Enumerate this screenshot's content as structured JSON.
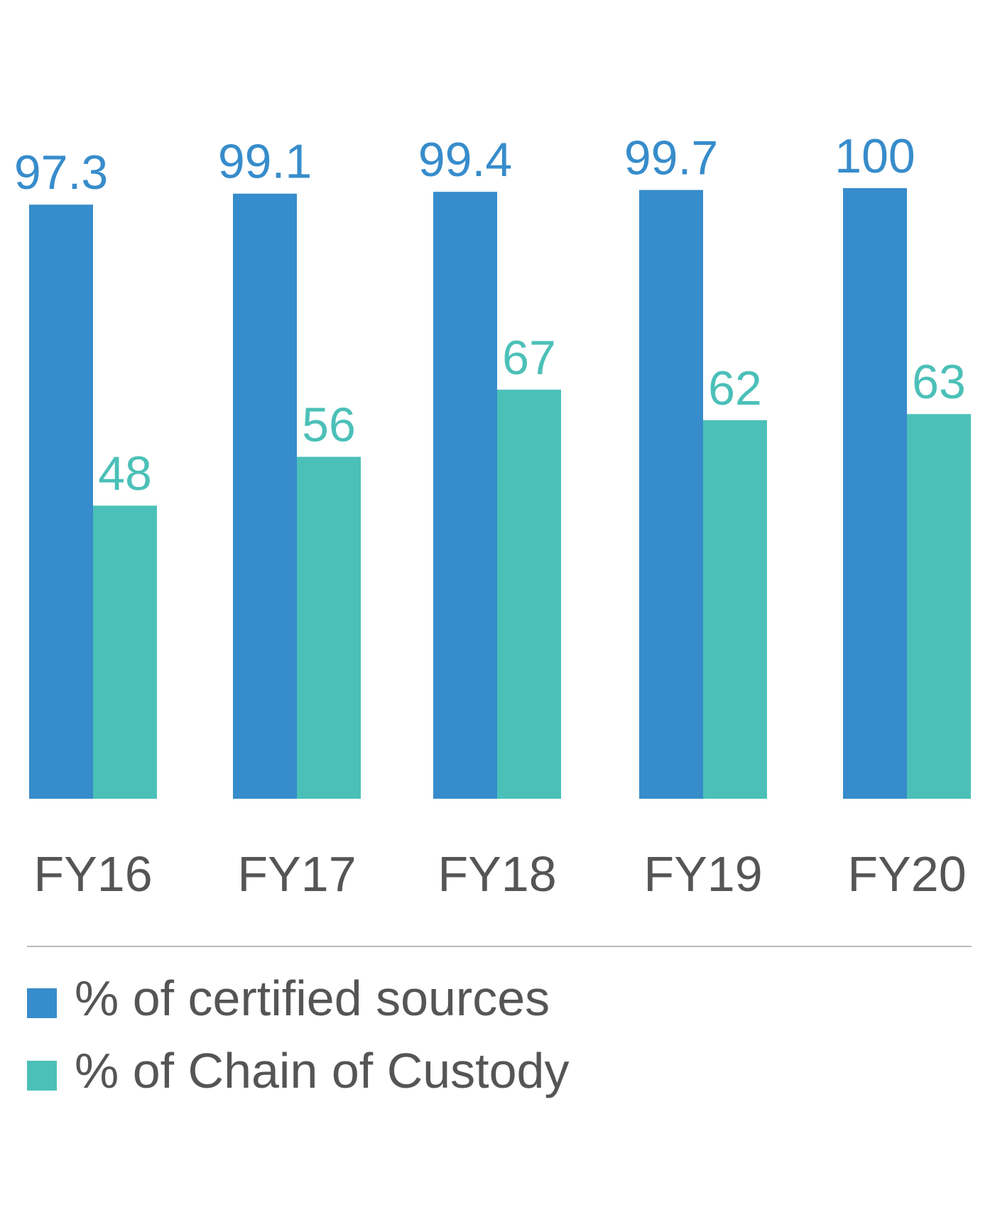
{
  "chart_data": {
    "type": "bar",
    "categories": [
      "FY16",
      "FY17",
      "FY18",
      "FY19",
      "FY20"
    ],
    "series": [
      {
        "name": "% of certified sources",
        "values": [
          97.3,
          99.1,
          99.4,
          99.7,
          100
        ],
        "labels": [
          "97.3",
          "99.1",
          "99.4",
          "99.7",
          "100"
        ],
        "color": "#378ccb"
      },
      {
        "name": "% of Chain of Custody",
        "values": [
          48,
          56,
          67,
          62,
          63
        ],
        "labels": [
          "48",
          "56",
          "67",
          "62",
          "63"
        ],
        "color": "#4bc0b8"
      }
    ],
    "ylim": [
      0,
      100
    ],
    "grid": false,
    "legend_position": "bottom-left",
    "label_color": "#555555",
    "divider_color": "#bbbbbb"
  }
}
